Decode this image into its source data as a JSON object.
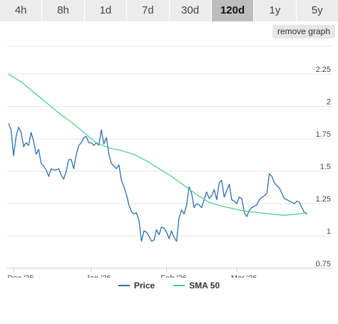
{
  "tabs": [
    {
      "label": "4h",
      "active": false
    },
    {
      "label": "8h",
      "active": false
    },
    {
      "label": "1d",
      "active": false
    },
    {
      "label": "7d",
      "active": false
    },
    {
      "label": "30d",
      "active": false
    },
    {
      "label": "120d",
      "active": true
    },
    {
      "label": "1y",
      "active": false
    },
    {
      "label": "5y",
      "active": false
    }
  ],
  "remove_graph_label": "remove graph",
  "colors": {
    "price": "#2a6eb0",
    "sma": "#3fcf80",
    "grid": "#e5e5e5",
    "active_tab": "#bdbdbd",
    "tab": "#ececec"
  },
  "chart_data": {
    "type": "line",
    "x_ticks": [
      "Dec '25",
      "Jan '26",
      "Feb '26",
      "Mar '26"
    ],
    "x_tick_pos": [
      2,
      33,
      63,
      91
    ],
    "xlim": [
      0,
      120
    ],
    "y_ticks": [
      "2.25",
      "2",
      "1.75",
      "1.5",
      "1.25",
      "1",
      "0.75"
    ],
    "ylim": [
      0.75,
      2.25
    ],
    "grid": true,
    "series": [
      {
        "name": "Price",
        "color": "#2a6eb0",
        "x": [
          0,
          1,
          2,
          3,
          4,
          5,
          6,
          7,
          8,
          9,
          10,
          11,
          12,
          13,
          14,
          15,
          16,
          17,
          18,
          19,
          20,
          21,
          22,
          23,
          24,
          25,
          26,
          27,
          28,
          29,
          30,
          31,
          32,
          33,
          34,
          35,
          36,
          37,
          38,
          39,
          40,
          41,
          42,
          43,
          44,
          45,
          46,
          47,
          48,
          49,
          50,
          51,
          52,
          53,
          54,
          55,
          56,
          57,
          58,
          59,
          60,
          61,
          62,
          63,
          64,
          65,
          66,
          67,
          68,
          69,
          70,
          71,
          72,
          73,
          74,
          75,
          76,
          77,
          78,
          79,
          80,
          81,
          82,
          83,
          84,
          85,
          86,
          87,
          88,
          89,
          90,
          91,
          92,
          93,
          94,
          95,
          96,
          97,
          98,
          99,
          100,
          101,
          102,
          103,
          104,
          105,
          106,
          107,
          108,
          109,
          110,
          111,
          112,
          113,
          114,
          115,
          116,
          117,
          118,
          119
        ],
        "values": [
          1.87,
          1.82,
          1.62,
          1.77,
          1.84,
          1.8,
          1.69,
          1.72,
          1.7,
          1.8,
          1.73,
          1.63,
          1.67,
          1.56,
          1.54,
          1.51,
          1.46,
          1.52,
          1.51,
          1.51,
          1.52,
          1.47,
          1.44,
          1.5,
          1.59,
          1.59,
          1.52,
          1.63,
          1.7,
          1.72,
          1.76,
          1.77,
          1.72,
          1.72,
          1.7,
          1.72,
          1.7,
          1.82,
          1.71,
          1.76,
          1.63,
          1.56,
          1.54,
          1.52,
          1.55,
          1.43,
          1.38,
          1.32,
          1.24,
          1.19,
          1.17,
          1.18,
          1.12,
          0.96,
          1.04,
          1.03,
          1.0,
          0.96,
          0.97,
          1.05,
          1.01,
          1.07,
          1.06,
          1.03,
          0.98,
          1.04,
          0.99,
          0.96,
          1.14,
          1.2,
          1.17,
          1.24,
          1.38,
          1.33,
          1.22,
          1.25,
          1.24,
          1.22,
          1.28,
          1.34,
          1.29,
          1.31,
          1.36,
          1.28,
          1.41,
          1.43,
          1.3,
          1.35,
          1.4,
          1.28,
          1.27,
          1.25,
          1.3,
          1.29,
          1.18,
          1.15,
          1.2,
          1.22,
          1.23,
          1.24,
          1.28,
          1.3,
          1.31,
          1.33,
          1.48,
          1.46,
          1.41,
          1.39,
          1.37,
          1.33,
          1.29,
          1.28,
          1.27,
          1.26,
          1.25,
          1.27,
          1.26,
          1.22,
          1.18,
          1.17
        ]
      },
      {
        "name": "SMA 50",
        "color": "#3fcf80",
        "x": [
          0,
          5,
          10,
          15,
          20,
          25,
          30,
          35,
          40,
          45,
          50,
          55,
          60,
          65,
          70,
          75,
          80,
          85,
          90,
          95,
          100,
          105,
          110,
          115,
          119
        ],
        "values": [
          2.25,
          2.19,
          2.11,
          2.03,
          1.95,
          1.88,
          1.8,
          1.72,
          1.68,
          1.66,
          1.63,
          1.58,
          1.52,
          1.46,
          1.39,
          1.32,
          1.26,
          1.23,
          1.21,
          1.19,
          1.18,
          1.17,
          1.16,
          1.17,
          1.18
        ]
      }
    ]
  }
}
